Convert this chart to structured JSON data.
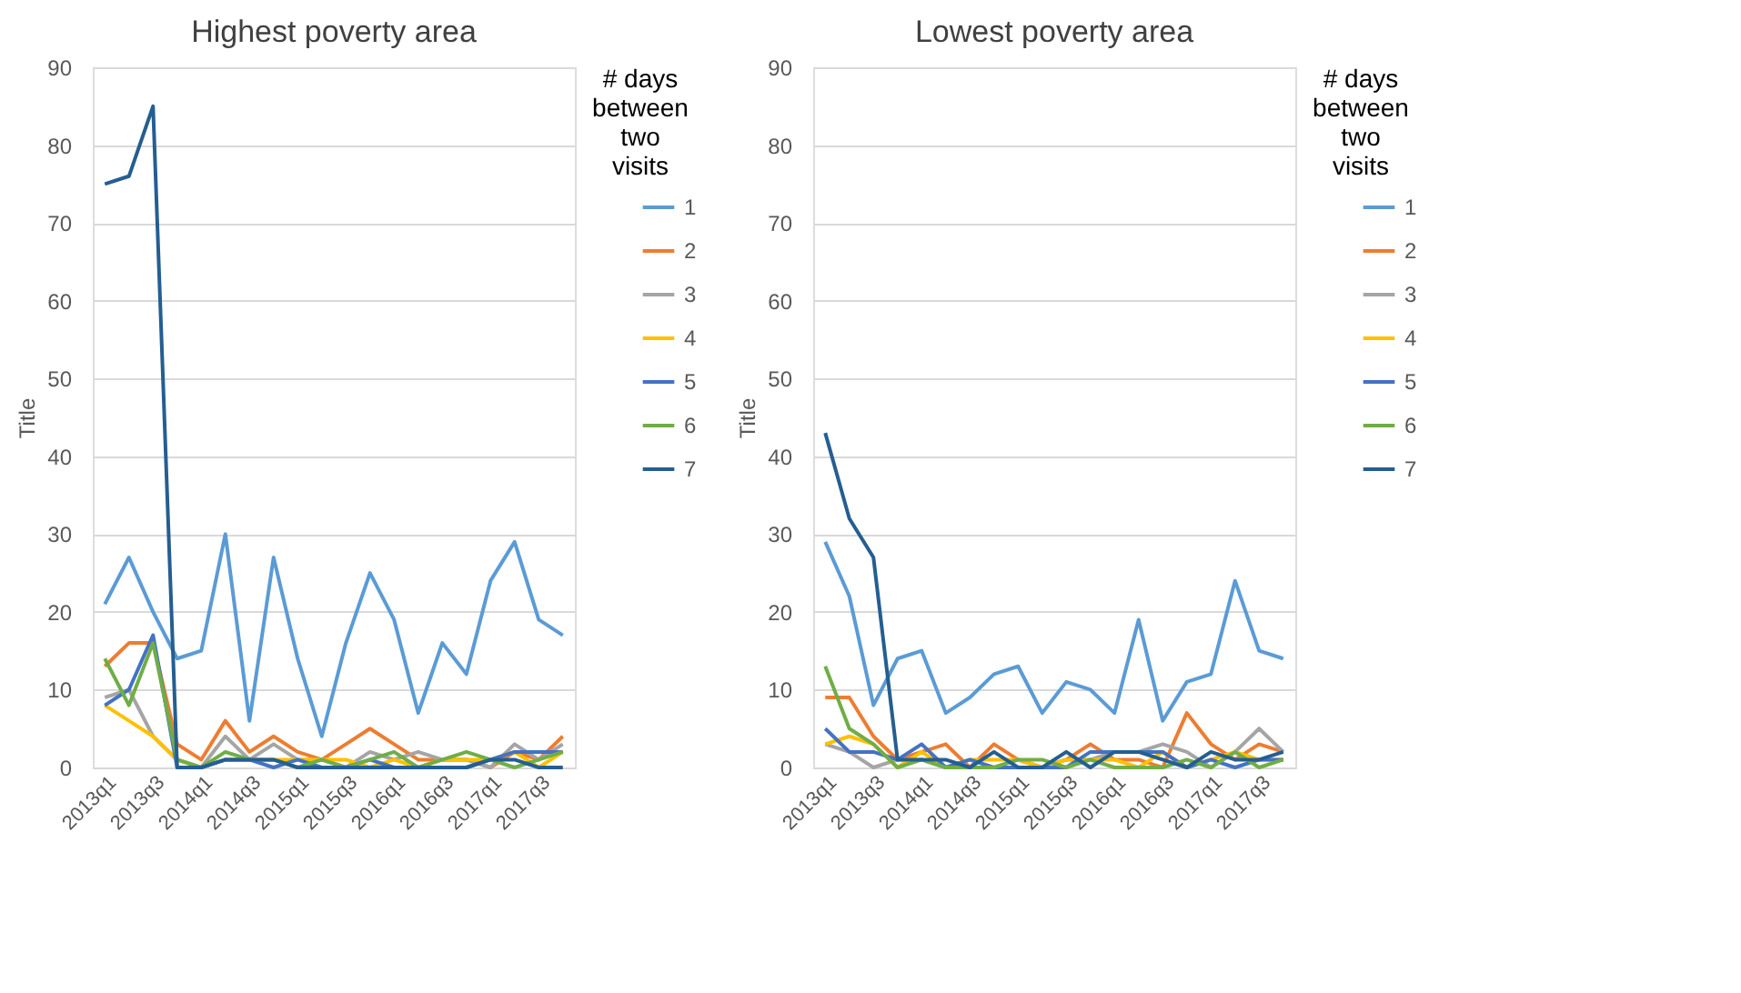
{
  "chart_data": [
    {
      "type": "line",
      "title": "Highest poverty area",
      "ylabel": "Title",
      "legend_title": "# days\nbetween\ntwo\nvisits",
      "categories": [
        "2013q1",
        null,
        "2013q3",
        null,
        "2014q1",
        null,
        "2014q3",
        null,
        "2015q1",
        null,
        "2015q3",
        null,
        "2016q1",
        null,
        "2016q3",
        null,
        "2017q1",
        null,
        "2017q3",
        null
      ],
      "ylim": [
        0,
        90
      ],
      "yticks": [
        0,
        10,
        20,
        30,
        40,
        50,
        60,
        70,
        80,
        90
      ],
      "grid": "y",
      "legend": "right",
      "marker": "none",
      "line_style": "solid",
      "series": [
        {
          "name": "1",
          "color": "#5b9bd5",
          "values": [
            21,
            27,
            20,
            14,
            15,
            30,
            6,
            27,
            14,
            4,
            16,
            25,
            19,
            7,
            16,
            12,
            24,
            29,
            19,
            17
          ]
        },
        {
          "name": "2",
          "color": "#ed7d31",
          "values": [
            13,
            16,
            16,
            3,
            1,
            6,
            2,
            4,
            2,
            1,
            3,
            5,
            3,
            1,
            1,
            1,
            0,
            2,
            1,
            4
          ]
        },
        {
          "name": "3",
          "color": "#a5a5a5",
          "values": [
            9,
            10,
            4,
            1,
            0,
            4,
            1,
            3,
            1,
            1,
            0,
            2,
            1,
            2,
            1,
            1,
            0,
            3,
            1,
            3
          ]
        },
        {
          "name": "4",
          "color": "#ffc000",
          "values": [
            8,
            6,
            4,
            1,
            0,
            1,
            1,
            1,
            1,
            1,
            1,
            0,
            1,
            0,
            1,
            1,
            1,
            2,
            0,
            2
          ]
        },
        {
          "name": "5",
          "color": "#4472c4",
          "values": [
            8,
            10,
            17,
            0,
            0,
            1,
            1,
            0,
            1,
            0,
            0,
            1,
            0,
            0,
            0,
            0,
            1,
            2,
            2,
            2
          ]
        },
        {
          "name": "6",
          "color": "#70ad47",
          "values": [
            14,
            8,
            16,
            1,
            0,
            2,
            1,
            1,
            0,
            1,
            0,
            1,
            2,
            0,
            1,
            2,
            1,
            0,
            1,
            2
          ]
        },
        {
          "name": "7",
          "color": "#255e91",
          "values": [
            75,
            76,
            85,
            0,
            0,
            1,
            1,
            1,
            0,
            0,
            0,
            0,
            0,
            0,
            0,
            0,
            1,
            1,
            0,
            0
          ]
        }
      ]
    },
    {
      "type": "line",
      "title": "Lowest poverty area",
      "ylabel": "Title",
      "legend_title": "# days\nbetween\ntwo\nvisits",
      "categories": [
        "2013q1",
        null,
        "2013q3",
        null,
        "2014q1",
        null,
        "2014q3",
        null,
        "2015q1",
        null,
        "2015q3",
        null,
        "2016q1",
        null,
        "2016q3",
        null,
        "2017q1",
        null,
        "2017q3",
        null
      ],
      "ylim": [
        0,
        90
      ],
      "yticks": [
        0,
        10,
        20,
        30,
        40,
        50,
        60,
        70,
        80,
        90
      ],
      "grid": "y",
      "legend": "right",
      "marker": "none",
      "line_style": "solid",
      "series": [
        {
          "name": "1",
          "color": "#5b9bd5",
          "values": [
            29,
            22,
            8,
            14,
            15,
            7,
            9,
            12,
            13,
            7,
            11,
            10,
            7,
            19,
            6,
            11,
            12,
            24,
            15,
            14
          ]
        },
        {
          "name": "2",
          "color": "#ed7d31",
          "values": [
            9,
            9,
            4,
            1,
            2,
            3,
            0,
            3,
            1,
            0,
            1,
            3,
            1,
            1,
            0,
            7,
            3,
            1,
            3,
            2
          ]
        },
        {
          "name": "3",
          "color": "#a5a5a5",
          "values": [
            3,
            2,
            0,
            1,
            1,
            0,
            0,
            0,
            1,
            0,
            1,
            1,
            2,
            2,
            3,
            2,
            0,
            2,
            5,
            2
          ]
        },
        {
          "name": "4",
          "color": "#ffc000",
          "values": [
            3,
            4,
            3,
            0,
            2,
            0,
            1,
            1,
            1,
            0,
            1,
            1,
            1,
            0,
            2,
            0,
            1,
            2,
            1,
            1
          ]
        },
        {
          "name": "5",
          "color": "#4472c4",
          "values": [
            5,
            2,
            2,
            1,
            3,
            0,
            1,
            0,
            0,
            0,
            0,
            2,
            2,
            2,
            2,
            0,
            1,
            0,
            1,
            1
          ]
        },
        {
          "name": "6",
          "color": "#70ad47",
          "values": [
            13,
            5,
            3,
            0,
            1,
            0,
            0,
            0,
            1,
            1,
            0,
            1,
            0,
            0,
            0,
            1,
            0,
            2,
            0,
            1
          ]
        },
        {
          "name": "7",
          "color": "#255e91",
          "values": [
            43,
            32,
            27,
            1,
            1,
            1,
            0,
            2,
            0,
            0,
            2,
            0,
            2,
            2,
            1,
            0,
            2,
            1,
            1,
            2
          ]
        }
      ]
    }
  ]
}
